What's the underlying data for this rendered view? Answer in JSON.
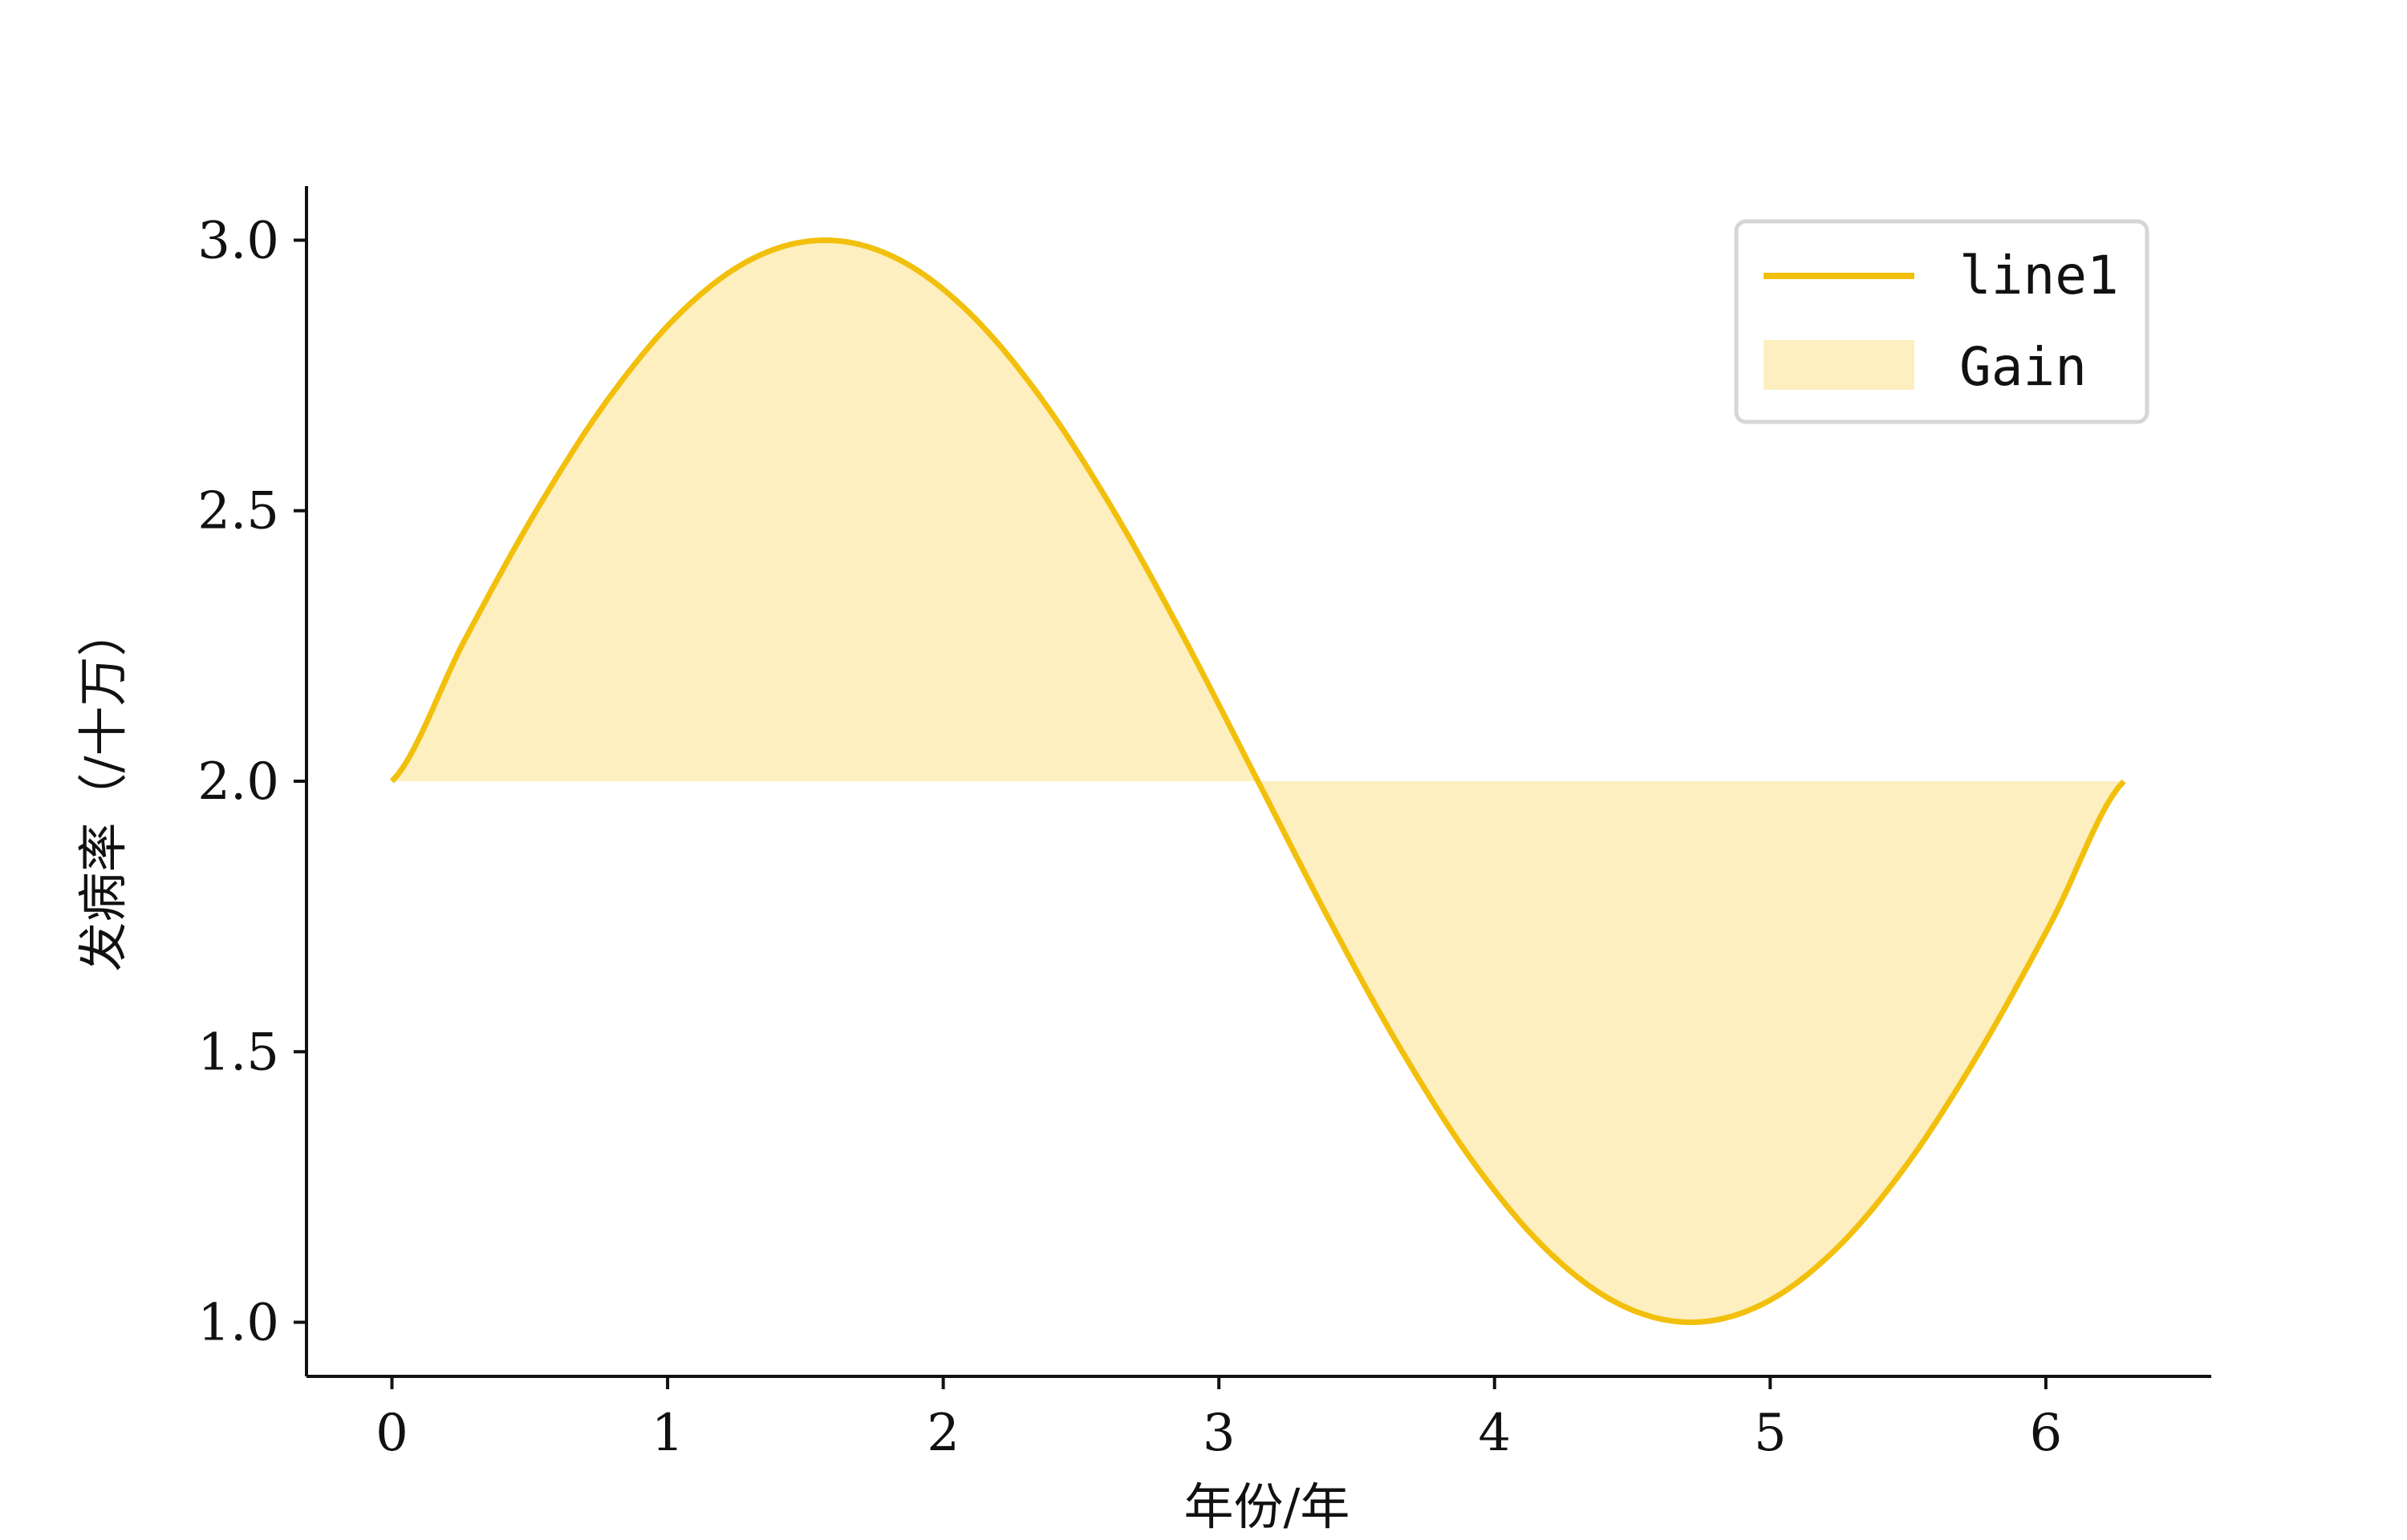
{
  "chart_data": {
    "type": "area",
    "x_range": [
      0,
      6.283
    ],
    "baseline": 2.0,
    "xlim": [
      -0.31,
      6.6
    ],
    "ylim": [
      0.9,
      3.1
    ],
    "xticks": [
      0,
      1,
      2,
      3,
      4,
      5,
      6
    ],
    "xtick_labels": [
      "0",
      "1",
      "2",
      "3",
      "4",
      "5",
      "6"
    ],
    "yticks": [
      1.0,
      1.5,
      2.0,
      2.5,
      3.0
    ],
    "ytick_labels": [
      "1.0",
      "1.5",
      "2.0",
      "2.5",
      "3.0"
    ],
    "xlabel": "年份/年",
    "ylabel": "发病率（/十万）",
    "series": [
      {
        "name": "line1",
        "kind": "line",
        "color": "#f2c00c",
        "x": [
          0,
          0.2618,
          0.5236,
          0.7854,
          1.0472,
          1.309,
          1.5708,
          1.8326,
          2.0944,
          2.3562,
          2.618,
          2.8798,
          3.1416,
          3.4034,
          3.6652,
          3.927,
          4.1888,
          4.4506,
          4.7124,
          4.9742,
          5.236,
          5.4978,
          5.7596,
          6.0214,
          6.2832
        ],
        "y": [
          2.0,
          2.259,
          2.5,
          2.707,
          2.866,
          2.966,
          3.0,
          2.966,
          2.866,
          2.707,
          2.5,
          2.259,
          2.0,
          1.741,
          1.5,
          1.293,
          1.134,
          1.034,
          1.0,
          1.034,
          1.134,
          1.293,
          1.5,
          1.741,
          2.0
        ]
      },
      {
        "name": "Gain",
        "kind": "fill_between",
        "color": "#fdefbf"
      }
    ],
    "legend_position": "top-right",
    "grid": false
  }
}
